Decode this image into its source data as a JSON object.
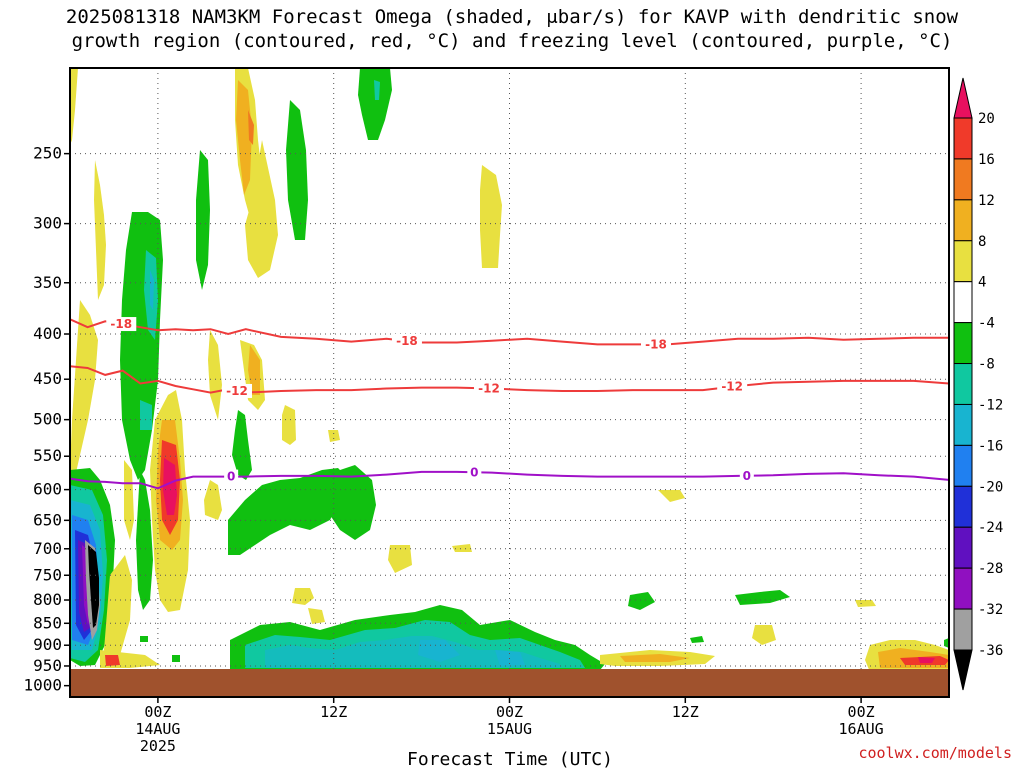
{
  "chart_data": {
    "type": "heatmap",
    "title_line1": "2025081318 NAM3KM Forecast Omega (shaded, μbar/s) for KAVP with dendritic snow",
    "title_line2": "growth region (contoured, red, °C) and freezing level (contoured, purple, °C)",
    "xlabel": "Forecast Time (UTC)",
    "credit": "coolwx.com/models",
    "y_axis": {
      "scale": "log-pressure",
      "units": "hPa",
      "reversed": true,
      "ticks": [
        250,
        300,
        350,
        400,
        450,
        500,
        550,
        600,
        650,
        700,
        750,
        800,
        850,
        900,
        950,
        1000
      ],
      "range": [
        200,
        1030
      ],
      "grid": "dotted"
    },
    "x_axis": {
      "range": [
        "2025-08-13 18Z",
        "2025-08-16 06Z"
      ],
      "ticks": [
        {
          "hour": 6,
          "label": "00Z",
          "sub1": "14AUG",
          "sub2": "2025"
        },
        {
          "hour": 18,
          "label": "12Z",
          "sub1": "",
          "sub2": ""
        },
        {
          "hour": 30,
          "label": "00Z",
          "sub1": "15AUG",
          "sub2": ""
        },
        {
          "hour": 42,
          "label": "12Z",
          "sub1": "",
          "sub2": ""
        },
        {
          "hour": 54,
          "label": "00Z",
          "sub1": "16AUG",
          "sub2": ""
        }
      ],
      "hours_span": [
        0,
        60
      ],
      "grid": "dotted"
    },
    "colorbar": {
      "levels": [
        20,
        16,
        12,
        8,
        4,
        -4,
        -8,
        -12,
        -16,
        -20,
        -24,
        -28,
        -32,
        -36
      ],
      "labels": [
        "20",
        "16",
        "12",
        "8",
        "4",
        "-4",
        "-8",
        "-12",
        "-16",
        "-20",
        "-24",
        "-28",
        "-32",
        "-36"
      ],
      "colors": [
        "#e8105f",
        "#f03a2a",
        "#f07a20",
        "#f0b020",
        "#e8e040",
        "#ffffff",
        "#10c010",
        "#10c8a0",
        "#18b4d0",
        "#2080f0",
        "#2030d8",
        "#6010c0",
        "#9010c0",
        "#a0a0a0",
        "#000000"
      ]
    },
    "contours": [
      {
        "name": "-18",
        "color": "#ee3b3b",
        "hours": [
          0,
          1.2,
          2.4,
          3.6,
          4.8,
          6,
          7.2,
          8.4,
          9.6,
          10.8,
          12,
          14.4,
          16.8,
          19.2,
          21.6,
          24,
          26.4,
          28.8,
          31.2,
          33.6,
          36,
          38.4,
          40.8,
          43.2,
          45.6,
          48,
          50.4,
          52.8,
          55.2,
          57.6,
          60
        ],
        "pressure": [
          385,
          393,
          387,
          390,
          393,
          396,
          395,
          396,
          395,
          400,
          395,
          403,
          405,
          408,
          405,
          409,
          409,
          407,
          405,
          408,
          411,
          411,
          411,
          408,
          405,
          405,
          404,
          406,
          405,
          404,
          404
        ],
        "label_hours": [
          3.5,
          23,
          40
        ]
      },
      {
        "name": "-12",
        "color": "#ee3b3b",
        "hours": [
          0,
          1.2,
          2.4,
          3.6,
          4.8,
          6,
          7.2,
          8.4,
          9.6,
          10.8,
          12,
          14.4,
          16.8,
          19.2,
          21.6,
          24,
          26.4,
          28.8,
          31.2,
          33.6,
          36,
          38.4,
          40.8,
          43.2,
          45.6,
          48,
          50.4,
          52.8,
          55.2,
          57.6,
          60
        ],
        "pressure": [
          435,
          437,
          445,
          440,
          455,
          452,
          458,
          462,
          466,
          462,
          466,
          464,
          463,
          463,
          461,
          460,
          460,
          461,
          463,
          464,
          464,
          463,
          463,
          463,
          458,
          454,
          453,
          452,
          452,
          452,
          455
        ],
        "label_hours": [
          11.4,
          28.6,
          45.2
        ]
      },
      {
        "name": "0",
        "color": "#a010c8",
        "hours": [
          0,
          1.2,
          2.4,
          3.6,
          4.8,
          6,
          7.2,
          8.4,
          9.6,
          10.8,
          12,
          14.4,
          16.8,
          19.2,
          21.6,
          24,
          26.4,
          28.8,
          31.2,
          33.6,
          36,
          38.4,
          40.8,
          43.2,
          45.6,
          48,
          50.4,
          52.8,
          55.2,
          57.6,
          60
        ],
        "pressure": [
          583,
          587,
          588,
          590,
          590,
          598,
          586,
          580,
          580,
          580,
          580,
          579,
          579,
          580,
          577,
          573,
          573,
          574,
          577,
          579,
          580,
          580,
          580,
          580,
          579,
          578,
          576,
          575,
          578,
          580,
          585
        ],
        "label_hours": [
          11,
          27.6,
          46.2
        ]
      }
    ]
  }
}
